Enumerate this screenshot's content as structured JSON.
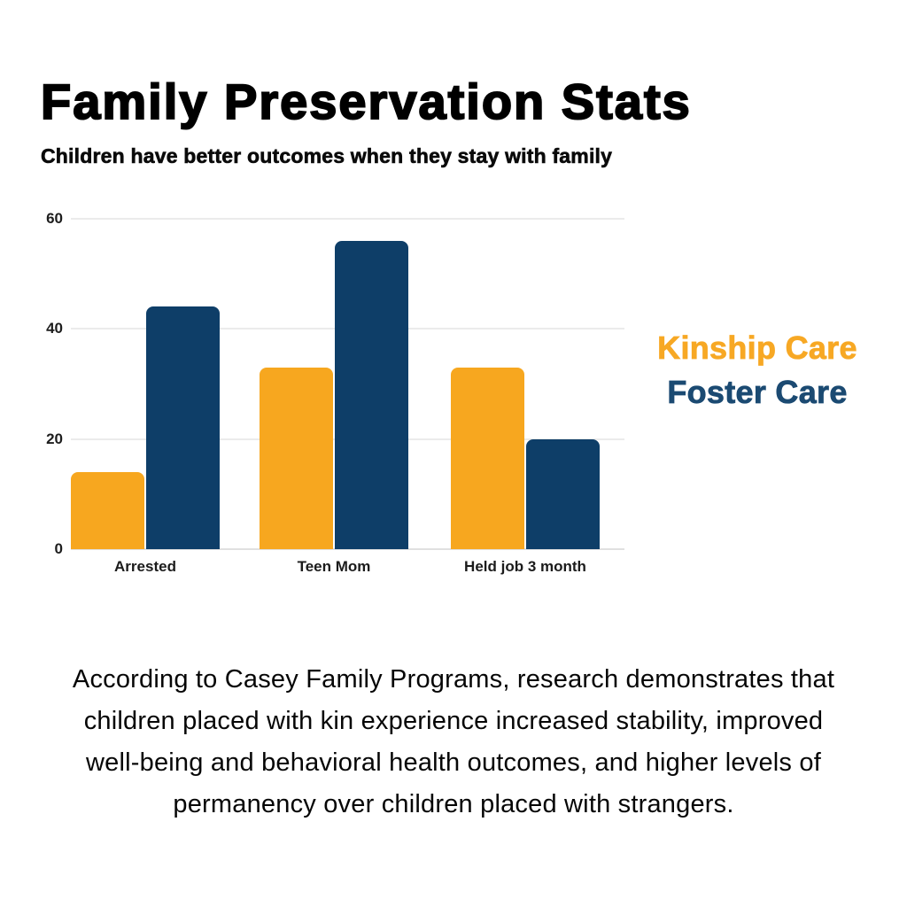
{
  "page": {
    "title": "Family Preservation Stats",
    "subtitle": "Children have better outcomes when they stay with family",
    "background_color": "#ffffff",
    "body_lines": [
      "According to Casey Family Programs, research demonstrates that",
      "children placed with kin experience increased stability, improved",
      "well-being and behavioral health outcomes, and higher levels of",
      "permanency over children placed with strangers."
    ]
  },
  "legend": {
    "items": [
      {
        "label": "Kinship Care",
        "color": "#F7A824"
      },
      {
        "label": "Foster Care",
        "color": "#1B4A72"
      }
    ]
  },
  "chart_data": {
    "type": "bar",
    "title": "Family Preservation Stats",
    "subtitle": "Children have better outcomes when they stay with family",
    "categories": [
      "Arrested",
      "Teen Mom",
      "Held job 3 month"
    ],
    "series": [
      {
        "name": "Kinship Care",
        "color": "#F7A71F",
        "values": [
          14,
          33,
          33
        ]
      },
      {
        "name": "Foster Care",
        "color": "#0E3E68",
        "values": [
          44,
          56,
          20
        ]
      }
    ],
    "xlabel": "",
    "ylabel": "",
    "ylim": [
      0,
      60
    ],
    "yticks": [
      0,
      20,
      40,
      60
    ],
    "grid": "horizontal-light",
    "legend_position": "right",
    "bar_corner_radius": 8
  }
}
